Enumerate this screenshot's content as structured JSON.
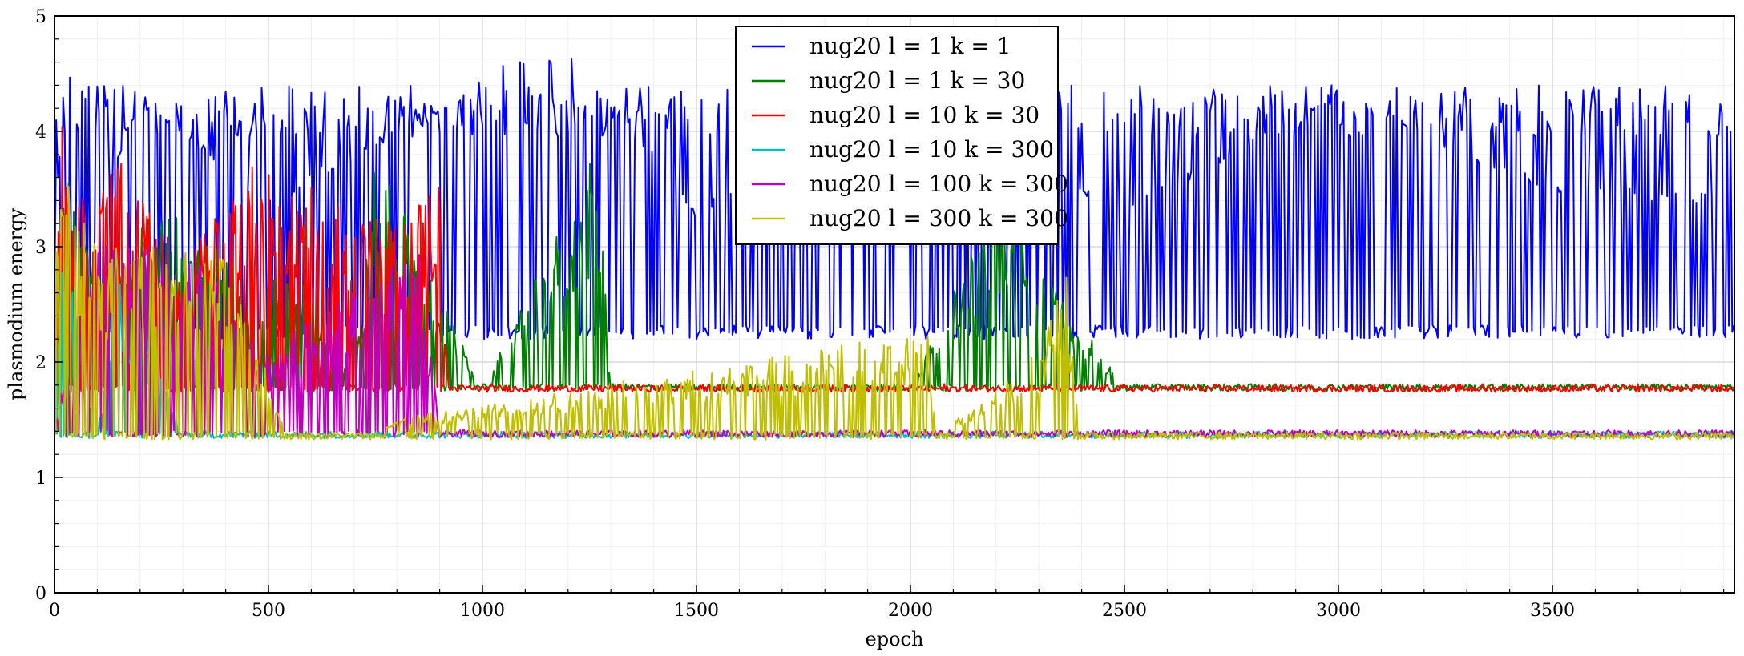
{
  "chart_data": {
    "type": "line",
    "title": "",
    "xlabel": "epoch",
    "ylabel": "plasmodium energy",
    "xlim": [
      0,
      3925
    ],
    "ylim": [
      0,
      5
    ],
    "x_ticks": [
      0,
      500,
      1000,
      1500,
      2000,
      2500,
      3000,
      3500
    ],
    "y_ticks": [
      0,
      1,
      2,
      3,
      4,
      5
    ],
    "grid": true,
    "legend_position": "top-center",
    "series": [
      {
        "name": "nug20 l = 1 k = 1",
        "color": "#0000ff",
        "x_end": 3925,
        "pattern": "oscillating",
        "baseline": 3.3,
        "low": 2.2,
        "high": 4.4,
        "keypoints": [
          [
            0,
            3.4
          ],
          [
            40,
            4.6
          ],
          [
            100,
            3.3
          ],
          [
            200,
            4.3
          ],
          [
            500,
            3.4
          ],
          [
            1000,
            4.4
          ],
          [
            1060,
            4.6
          ],
          [
            1220,
            4.6
          ],
          [
            1500,
            3.3
          ],
          [
            2000,
            4.2
          ],
          [
            2500,
            3.3
          ],
          [
            3000,
            4.3
          ],
          [
            3500,
            3.5
          ],
          [
            3925,
            3.4
          ]
        ]
      },
      {
        "name": "nug20 l = 1 k = 30",
        "color": "#008000",
        "x_end": 3925,
        "pattern": "bursts-then-flat",
        "plateau": 1.78,
        "keypoints": [
          [
            0,
            1.5
          ],
          [
            20,
            3.4
          ],
          [
            100,
            2.9
          ],
          [
            250,
            3.2
          ],
          [
            400,
            2.8
          ],
          [
            500,
            2.6
          ],
          [
            600,
            2.6
          ],
          [
            700,
            1.8
          ],
          [
            750,
            3.6
          ],
          [
            1000,
            1.76
          ],
          [
            1270,
            3.6
          ],
          [
            1300,
            1.76
          ],
          [
            2000,
            1.78
          ],
          [
            2200,
            3.2
          ],
          [
            2500,
            1.77
          ],
          [
            3000,
            1.75
          ],
          [
            3500,
            1.79
          ],
          [
            3925,
            1.74
          ]
        ]
      },
      {
        "name": "nug20 l = 10 k = 30",
        "color": "#ff0000",
        "x_end": 3925,
        "pattern": "bursts-then-flat",
        "plateau": 1.77,
        "keypoints": [
          [
            0,
            4.2
          ],
          [
            50,
            3.2
          ],
          [
            150,
            3.5
          ],
          [
            300,
            2.7
          ],
          [
            450,
            3.5
          ],
          [
            800,
            3.0
          ],
          [
            900,
            3.4
          ],
          [
            920,
            1.8
          ],
          [
            1000,
            1.78
          ],
          [
            1500,
            1.76
          ],
          [
            2000,
            1.78
          ],
          [
            2500,
            1.76
          ],
          [
            3000,
            1.77
          ],
          [
            3500,
            1.8
          ],
          [
            3925,
            1.75
          ]
        ]
      },
      {
        "name": "nug20 l = 10 k = 300",
        "color": "#00bfbf",
        "x_end": 3925,
        "pattern": "bursts-then-flat",
        "plateau": 1.37,
        "keypoints": [
          [
            0,
            1.3
          ],
          [
            20,
            3.0
          ],
          [
            100,
            1.37
          ],
          [
            150,
            2.7
          ],
          [
            300,
            1.37
          ],
          [
            1000,
            1.37
          ],
          [
            1780,
            1.42
          ],
          [
            2000,
            1.36
          ],
          [
            2500,
            1.38
          ],
          [
            3000,
            1.35
          ],
          [
            3500,
            1.37
          ],
          [
            3925,
            1.36
          ]
        ]
      },
      {
        "name": "nug20 l = 100 k = 300",
        "color": "#bf00bf",
        "x_end": 3925,
        "pattern": "bursts-then-flat",
        "plateau": 1.38,
        "keypoints": [
          [
            0,
            1.5
          ],
          [
            100,
            2.8
          ],
          [
            300,
            2.9
          ],
          [
            500,
            2.0
          ],
          [
            850,
            2.9
          ],
          [
            900,
            1.38
          ],
          [
            1500,
            1.37
          ],
          [
            2000,
            1.38
          ],
          [
            2500,
            1.37
          ],
          [
            3000,
            1.37
          ],
          [
            3500,
            1.39
          ],
          [
            3925,
            1.36
          ]
        ]
      },
      {
        "name": "nug20 l = 300 k = 300",
        "color": "#bfbf00",
        "x_end": 3925,
        "pattern": "bursts-then-flat",
        "plateau": 1.36,
        "keypoints": [
          [
            0,
            3.4
          ],
          [
            20,
            3.5
          ],
          [
            100,
            2.8
          ],
          [
            250,
            2.8
          ],
          [
            400,
            2.7
          ],
          [
            550,
            1.36
          ],
          [
            2040,
            2.15
          ],
          [
            2060,
            1.36
          ],
          [
            2300,
            2.0
          ],
          [
            2360,
            2.7
          ],
          [
            2400,
            1.36
          ],
          [
            3000,
            1.36
          ],
          [
            3500,
            1.37
          ],
          [
            3925,
            1.35
          ]
        ]
      }
    ]
  }
}
